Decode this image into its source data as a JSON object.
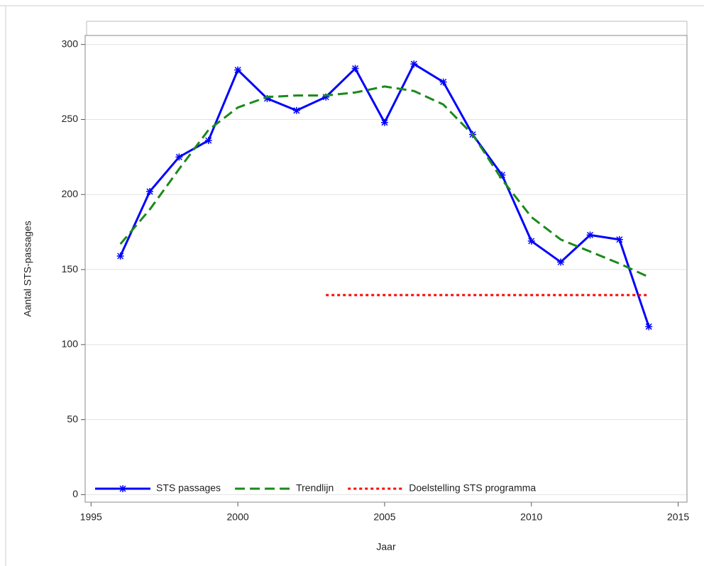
{
  "chart_data": {
    "type": "line",
    "x_label": "Jaar",
    "y_label": "Aantal STS-passages",
    "xlim": [
      1994.8,
      2015.3
    ],
    "xticks": [
      1995,
      2000,
      2005,
      2010,
      2015
    ],
    "ylim": [
      -5,
      306
    ],
    "yticks": [
      0,
      50,
      100,
      150,
      200,
      250,
      300
    ],
    "grid": true,
    "legend": "lower left",
    "series": [
      {
        "name": "STS passages",
        "color": "#0000ff",
        "style": "solid",
        "marker": "asterisk",
        "x": [
          1996,
          1997,
          1998,
          1999,
          2000,
          2001,
          2002,
          2003,
          2004,
          2005,
          2006,
          2007,
          2008,
          2009,
          2010,
          2011,
          2012,
          2013,
          2014
        ],
        "values": [
          159,
          202,
          225,
          236,
          283,
          264,
          256,
          265,
          284,
          248,
          287,
          275,
          240,
          213,
          169,
          155,
          173,
          170,
          112
        ]
      },
      {
        "name": "Trendlijn",
        "color": "#1a8a1a",
        "style": "dashed",
        "x": [
          1996,
          1997,
          1998,
          1999,
          2000,
          2001,
          2002,
          2003,
          2004,
          2005,
          2006,
          2007,
          2008,
          2009,
          2010,
          2011,
          2012,
          2013,
          2014
        ],
        "values": [
          167,
          190,
          217,
          243,
          258,
          265,
          266,
          266,
          268,
          272,
          269,
          260,
          240,
          210,
          185,
          170,
          162,
          154,
          145
        ]
      },
      {
        "name": "Doelstelling STS programma",
        "color": "#ff0000",
        "style": "dotted",
        "x": [
          2003,
          2014
        ],
        "values": [
          133,
          133
        ]
      }
    ]
  }
}
